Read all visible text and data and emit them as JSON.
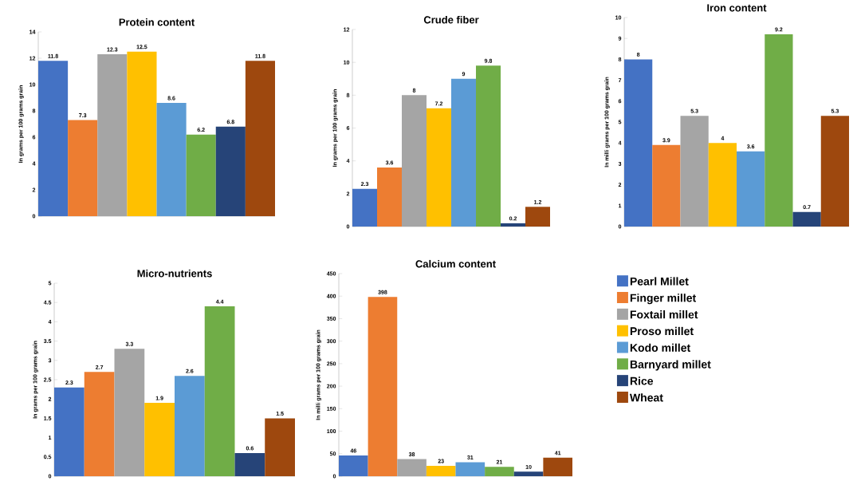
{
  "chart_data": [
    {
      "type": "bar",
      "title": "Protein content",
      "ylabel": "In grams per 100 grams grain",
      "categories": [
        null,
        null,
        null,
        null,
        null,
        null,
        null,
        null
      ],
      "values": [
        11.8,
        7.3,
        12.3,
        12.5,
        8.6,
        6.2,
        6.8,
        11.8
      ],
      "colors": [
        "#4472c4",
        "#ed7d31",
        "#a5a5a5",
        "#ffc000",
        "#5b9bd5",
        "#70ad47",
        "#264478",
        "#9e480e"
      ],
      "ylim": [
        0,
        14
      ],
      "yticks": [
        0,
        2,
        4,
        6,
        8,
        10,
        12,
        14
      ],
      "data_labels": true
    },
    {
      "type": "bar",
      "title": "Crude fiber",
      "ylabel": "In grams per 100 grams grain",
      "categories": [
        null,
        null,
        null,
        null,
        null,
        null,
        null,
        null
      ],
      "values": [
        2.3,
        3.6,
        8,
        7.2,
        9,
        9.8,
        0.2,
        1.2
      ],
      "colors": [
        "#4472c4",
        "#ed7d31",
        "#a5a5a5",
        "#ffc000",
        "#5b9bd5",
        "#70ad47",
        "#264478",
        "#9e480e"
      ],
      "ylim": [
        0,
        12
      ],
      "yticks": [
        0,
        2,
        4,
        6,
        8,
        10,
        12
      ],
      "data_labels": true
    },
    {
      "type": "bar",
      "title": "Iron content",
      "ylabel": "In milli grams per 100 grams grain",
      "categories": [
        null,
        null,
        null,
        null,
        null,
        null,
        null,
        null
      ],
      "values": [
        8,
        3.9,
        5.3,
        4,
        3.6,
        9.2,
        0.7,
        5.3
      ],
      "colors": [
        "#4472c4",
        "#ed7d31",
        "#a5a5a5",
        "#ffc000",
        "#5b9bd5",
        "#70ad47",
        "#264478",
        "#9e480e"
      ],
      "ylim": [
        0,
        10
      ],
      "yticks": [
        0,
        1,
        2,
        3,
        4,
        5,
        6,
        7,
        8,
        9,
        10
      ],
      "data_labels": true
    },
    {
      "type": "bar",
      "title": "Micro-nutrients",
      "ylabel": "In grams per 100 grams grain",
      "categories": [
        null,
        null,
        null,
        null,
        null,
        null,
        null,
        null
      ],
      "values": [
        2.3,
        2.7,
        3.3,
        1.9,
        2.6,
        4.4,
        0.6,
        1.5
      ],
      "colors": [
        "#4472c4",
        "#ed7d31",
        "#a5a5a5",
        "#ffc000",
        "#5b9bd5",
        "#70ad47",
        "#264478",
        "#9e480e"
      ],
      "ylim": [
        0,
        5
      ],
      "yticks": [
        0,
        0.5,
        1,
        1.5,
        2,
        2.5,
        3,
        3.5,
        4,
        4.5,
        5
      ],
      "data_labels": true
    },
    {
      "type": "bar",
      "title": "Calcium content",
      "ylabel": "In milli grams per 100 grams grain",
      "categories": [
        null
      ],
      "series": [
        {
          "name": "Pearl Millet",
          "color": "#4472c4",
          "values": [
            46
          ]
        },
        {
          "name": "Finger millet",
          "color": "#ed7d31",
          "values": [
            398
          ]
        },
        {
          "name": "Foxtail millet",
          "color": "#a5a5a5",
          "values": [
            38
          ]
        },
        {
          "name": "Proso millet",
          "color": "#ffc000",
          "values": [
            23
          ]
        },
        {
          "name": "Kodo millet",
          "color": "#5b9bd5",
          "values": [
            31
          ]
        },
        {
          "name": "Barnyard millet",
          "color": "#70ad47",
          "values": [
            21
          ]
        },
        {
          "name": "Rice",
          "color": "#264478",
          "values": [
            10
          ]
        },
        {
          "name": "Wheat",
          "color": "#9e480e",
          "values": [
            41
          ]
        }
      ],
      "ylim": [
        0,
        450
      ],
      "yticks": [
        0,
        50,
        100,
        150,
        200,
        250,
        300,
        350,
        400,
        450
      ],
      "data_labels": true,
      "legend": "right"
    }
  ]
}
